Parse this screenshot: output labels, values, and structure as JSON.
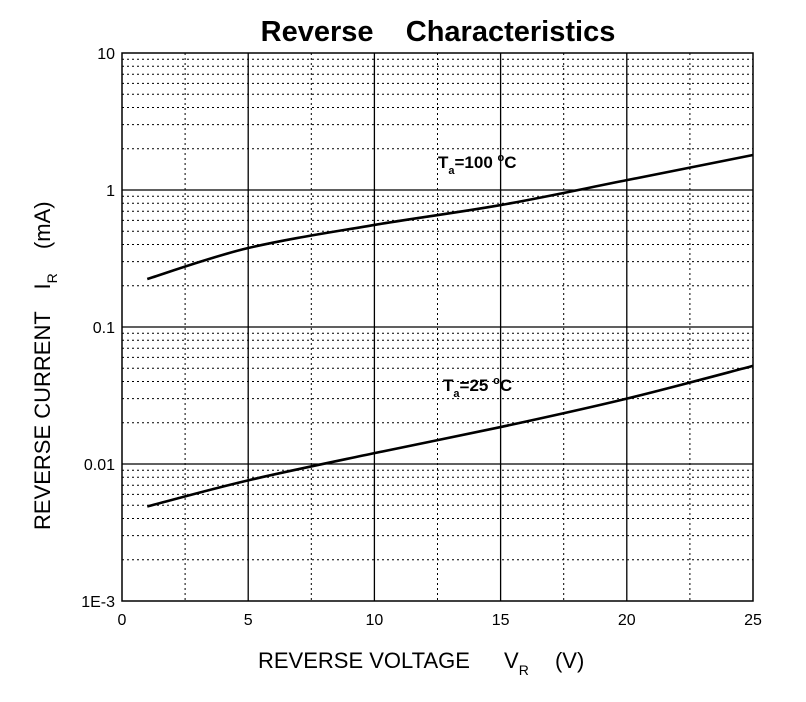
{
  "chart_data": {
    "type": "line",
    "title": "Reverse    Characteristics",
    "xlabel": "REVERSE VOLTAGE",
    "xlabel_sym": "V",
    "xlabel_sub": "R",
    "xlabel_unit": "(V)",
    "ylabel": "REVERSE CURRENT",
    "ylabel_sym": "I",
    "ylabel_sub": "R",
    "ylabel_unit": "(mA)",
    "xlim": [
      0,
      25
    ],
    "ylim": [
      0.001,
      10
    ],
    "yscale": "log",
    "grid": true,
    "xticks": [
      "0",
      "5",
      "10",
      "15",
      "20",
      "25"
    ],
    "yticks": [
      "1E-3",
      "0.01",
      "0.1",
      "1",
      "10"
    ],
    "series": [
      {
        "name": "Ta=100 °C",
        "label_main": "T",
        "label_sub": "a",
        "label_eq": "=100 ",
        "label_sup": "o",
        "label_unit": "C",
        "label_pos": [
          14.5,
          1.45
        ],
        "x": [
          1,
          5,
          10,
          15,
          20,
          25
        ],
        "y": [
          0.224,
          0.377,
          0.556,
          0.776,
          1.18,
          1.8
        ]
      },
      {
        "name": "Ta=25 °C",
        "label_main": "T",
        "label_sub": "a",
        "label_eq": "=25 ",
        "label_sup": "o",
        "label_unit": "C",
        "label_pos": [
          14.7,
          0.034
        ],
        "x": [
          1,
          5,
          10,
          15,
          20,
          25
        ],
        "y": [
          0.0049,
          0.0076,
          0.012,
          0.0186,
          0.03,
          0.052
        ]
      }
    ]
  }
}
